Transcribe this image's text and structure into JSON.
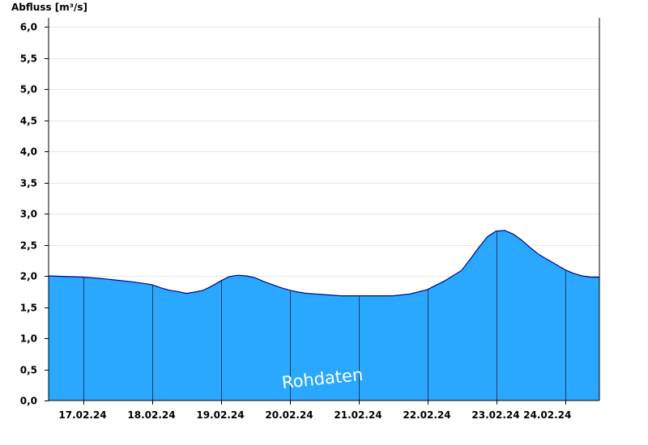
{
  "chart_data": {
    "type": "area",
    "title": "",
    "xlabel": "",
    "ylabel": "Abfluss [m³/s]",
    "ylim": [
      0,
      6.2
    ],
    "yticks": [
      0,
      0.5,
      1.0,
      1.5,
      2.0,
      2.5,
      3.0,
      3.5,
      4.0,
      4.5,
      5.0,
      5.5,
      6.0
    ],
    "ytick_labels": [
      "0,0",
      "0,5",
      "1,0",
      "1,5",
      "2,0",
      "2,5",
      "3,0",
      "3,5",
      "4,0",
      "4,5",
      "5,0",
      "5,5",
      "6,0"
    ],
    "xlim": [
      "2024-02-16T12:00",
      "2024-02-24T12:00"
    ],
    "x_day_boundaries": [
      "2024-02-17T00:00",
      "2024-02-18T00:00",
      "2024-02-19T00:00",
      "2024-02-20T00:00",
      "2024-02-21T00:00",
      "2024-02-22T00:00",
      "2024-02-23T00:00",
      "2024-02-24T00:00"
    ],
    "xtick_labels": [
      "17.02.24",
      "18.02.24",
      "19.02.24",
      "20.02.24",
      "21.02.24",
      "22.02.24",
      "23.02.24",
      "24.02.24"
    ],
    "grid": true,
    "fill_color": "#2aa8ff",
    "line_color": "#00008b",
    "annotation": "Rohdaten",
    "series": [
      {
        "x": [
          "2024-02-16T12:00",
          "2024-02-17T00:00",
          "2024-02-17T06:00",
          "2024-02-17T12:00",
          "2024-02-17T18:00",
          "2024-02-18T00:00",
          "2024-02-18T03:00",
          "2024-02-18T06:00",
          "2024-02-18T09:00",
          "2024-02-18T12:00",
          "2024-02-18T15:00",
          "2024-02-18T18:00",
          "2024-02-18T21:00",
          "2024-02-19T00:00",
          "2024-02-19T03:00",
          "2024-02-19T06:00",
          "2024-02-19T09:00",
          "2024-02-19T12:00",
          "2024-02-19T15:00",
          "2024-02-19T18:00",
          "2024-02-19T21:00",
          "2024-02-20T00:00",
          "2024-02-20T03:00",
          "2024-02-20T06:00",
          "2024-02-20T09:00",
          "2024-02-20T12:00",
          "2024-02-20T15:00",
          "2024-02-20T18:00",
          "2024-02-20T21:00",
          "2024-02-21T00:00",
          "2024-02-21T06:00",
          "2024-02-21T12:00",
          "2024-02-21T18:00",
          "2024-02-22T00:00",
          "2024-02-22T06:00",
          "2024-02-22T12:00",
          "2024-02-22T15:00",
          "2024-02-22T18:00",
          "2024-02-22T21:00",
          "2024-02-23T00:00",
          "2024-02-23T03:00",
          "2024-02-23T06:00",
          "2024-02-23T09:00",
          "2024-02-23T12:00",
          "2024-02-23T15:00",
          "2024-02-23T18:00",
          "2024-02-23T21:00",
          "2024-02-24T00:00",
          "2024-02-24T03:00",
          "2024-02-24T06:00",
          "2024-02-24T09:00",
          "2024-02-24T12:00"
        ],
        "values": [
          2.0,
          1.98,
          1.96,
          1.93,
          1.9,
          1.86,
          1.81,
          1.77,
          1.75,
          1.72,
          1.74,
          1.77,
          1.84,
          1.92,
          1.99,
          2.01,
          2.0,
          1.97,
          1.91,
          1.86,
          1.81,
          1.77,
          1.74,
          1.72,
          1.71,
          1.7,
          1.69,
          1.68,
          1.68,
          1.68,
          1.68,
          1.68,
          1.71,
          1.78,
          1.92,
          2.09,
          2.27,
          2.46,
          2.63,
          2.72,
          2.73,
          2.67,
          2.57,
          2.45,
          2.34,
          2.26,
          2.18,
          2.1,
          2.04,
          2.0,
          1.98,
          1.98
        ]
      }
    ]
  }
}
